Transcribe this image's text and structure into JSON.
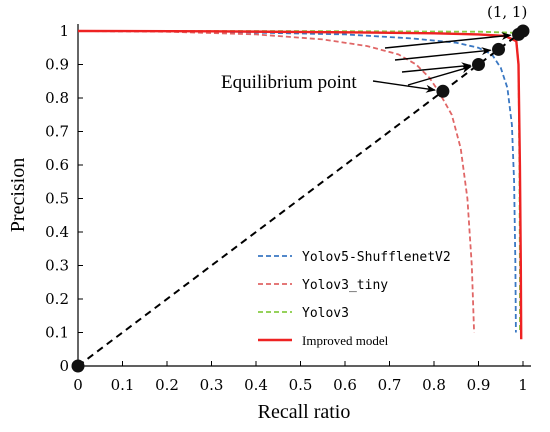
{
  "chart_data": {
    "type": "line",
    "xlabel": "Recall ratio",
    "ylabel": "Precision",
    "xlim": [
      0,
      1
    ],
    "ylim": [
      0,
      1
    ],
    "x_ticks": [
      "0",
      "0.1",
      "0.2",
      "0.3",
      "0.4",
      "0.5",
      "0.6",
      "0.7",
      "0.8",
      "0.9",
      "1"
    ],
    "y_ticks": [
      "0",
      "0.1",
      "0.2",
      "0.3",
      "0.4",
      "0.5",
      "0.6",
      "0.7",
      "0.8",
      "0.9",
      "1"
    ],
    "grid": false,
    "legend_position": "bottom-right",
    "series": [
      {
        "name": "Yolov5-ShufflenetV2",
        "color": "#3a78c3",
        "style": "dashed",
        "points": [
          [
            0,
            1
          ],
          [
            0.3,
            0.998
          ],
          [
            0.6,
            0.99
          ],
          [
            0.75,
            0.978
          ],
          [
            0.85,
            0.965
          ],
          [
            0.9,
            0.95
          ],
          [
            0.93,
            0.93
          ],
          [
            0.95,
            0.89
          ],
          [
            0.965,
            0.83
          ],
          [
            0.975,
            0.72
          ],
          [
            0.98,
            0.55
          ],
          [
            0.983,
            0.3
          ],
          [
            0.984,
            0.1
          ]
        ]
      },
      {
        "name": "Yolov3_tiny",
        "color": "#e06666",
        "style": "dashed",
        "points": [
          [
            0,
            1
          ],
          [
            0.2,
            0.998
          ],
          [
            0.4,
            0.99
          ],
          [
            0.55,
            0.975
          ],
          [
            0.65,
            0.955
          ],
          [
            0.72,
            0.93
          ],
          [
            0.76,
            0.9
          ],
          [
            0.79,
            0.86
          ],
          [
            0.81,
            0.82
          ],
          [
            0.84,
            0.75
          ],
          [
            0.86,
            0.65
          ],
          [
            0.875,
            0.5
          ],
          [
            0.885,
            0.3
          ],
          [
            0.89,
            0.1
          ]
        ]
      },
      {
        "name": "Yolov3",
        "color": "#88cc44",
        "style": "dashed",
        "points": [
          [
            0,
            1
          ],
          [
            0.5,
            1
          ],
          [
            0.9,
            0.998
          ],
          [
            0.975,
            0.995
          ],
          [
            0.985,
            0.98
          ],
          [
            0.99,
            0.9
          ],
          [
            0.992,
            0.6
          ],
          [
            0.993,
            0.3
          ],
          [
            0.993,
            0.1
          ]
        ]
      },
      {
        "name": "Improved model",
        "color": "#ee2222",
        "style": "solid",
        "points": [
          [
            0,
            1
          ],
          [
            0.3,
            0.999
          ],
          [
            0.6,
            0.996
          ],
          [
            0.8,
            0.993
          ],
          [
            0.9,
            0.99
          ],
          [
            0.96,
            0.985
          ],
          [
            0.985,
            0.97
          ],
          [
            0.99,
            0.9
          ],
          [
            0.993,
            0.6
          ],
          [
            0.995,
            0.3
          ],
          [
            0.996,
            0.08
          ]
        ]
      }
    ],
    "diagonal": {
      "from": [
        0,
        0
      ],
      "to": [
        1,
        1
      ],
      "style": "dashed",
      "color": "#000000"
    },
    "equilibrium_points": [
      [
        0,
        0
      ],
      [
        0.82,
        0.82
      ],
      [
        0.9,
        0.9
      ],
      [
        0.945,
        0.945
      ],
      [
        0.99,
        0.99
      ],
      [
        1,
        1
      ]
    ],
    "annotations": {
      "equilibrium_label": "Equilibrium point",
      "corner_label": "(1, 1)"
    }
  }
}
